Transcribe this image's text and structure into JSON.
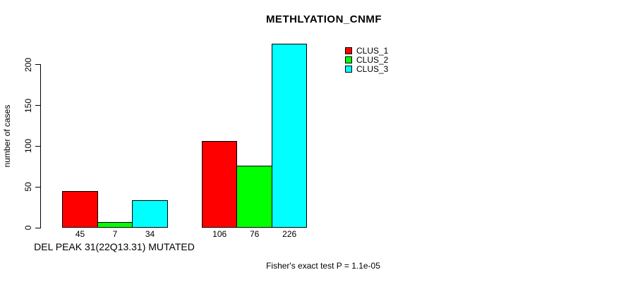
{
  "chart_data": {
    "type": "bar",
    "title": "METHLYATION_CNMF",
    "ylabel": "number of cases",
    "xlabel": "",
    "footnote": "Fisher's exact test P = 1.1e-05",
    "ylim": [
      0,
      230
    ],
    "yticks": [
      0,
      50,
      100,
      150,
      200
    ],
    "grid": false,
    "legend_position": "top-right",
    "series": [
      {
        "name": "CLUS_1",
        "color": "#FF0000",
        "values": [
          45,
          106
        ]
      },
      {
        "name": "CLUS_2",
        "color": "#00FF00",
        "values": [
          7,
          76
        ]
      },
      {
        "name": "CLUS_3",
        "color": "#00FFFF",
        "values": [
          34,
          226
        ]
      }
    ],
    "groups": [
      {
        "label": "DEL PEAK 31(22Q13.31) MUTATED",
        "values": [
          45,
          7,
          34
        ]
      },
      {
        "label": "",
        "values": [
          106,
          76,
          226
        ]
      }
    ]
  }
}
